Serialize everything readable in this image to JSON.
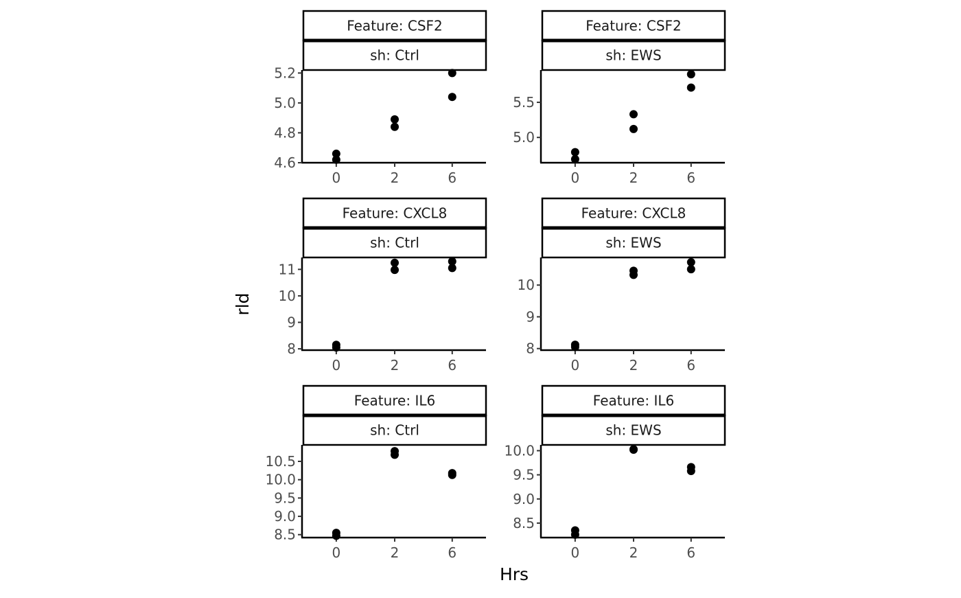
{
  "chart_data": {
    "type": "scatter",
    "xlabel": "Hrs",
    "ylabel": "rld",
    "x_categories": [
      "0",
      "2",
      "6"
    ],
    "grid": false,
    "legend": "none",
    "point_color": "#000000",
    "panels": [
      {
        "feature_label": "Feature: CSF2",
        "sh_label": "sh: Ctrl",
        "ylim": [
          4.6,
          5.22
        ],
        "yticks": [
          4.6,
          4.8,
          5.0,
          5.2
        ],
        "ytick_labels": [
          "4.6",
          "4.8",
          "5.0",
          "5.2"
        ],
        "points": [
          {
            "x": "0",
            "y": 4.66
          },
          {
            "x": "0",
            "y": 4.62
          },
          {
            "x": "2",
            "y": 4.89
          },
          {
            "x": "2",
            "y": 4.84
          },
          {
            "x": "6",
            "y": 5.2
          },
          {
            "x": "6",
            "y": 5.04
          }
        ]
      },
      {
        "feature_label": "Feature: CSF2",
        "sh_label": "sh: EWS",
        "ylim": [
          4.64,
          5.96
        ],
        "yticks": [
          5.0,
          5.5
        ],
        "ytick_labels": [
          "5.0",
          "5.5"
        ],
        "points": [
          {
            "x": "0",
            "y": 4.79
          },
          {
            "x": "0",
            "y": 4.69
          },
          {
            "x": "2",
            "y": 5.33
          },
          {
            "x": "2",
            "y": 5.12
          },
          {
            "x": "6",
            "y": 5.9
          },
          {
            "x": "6",
            "y": 5.71
          }
        ]
      },
      {
        "feature_label": "Feature: CXCL8",
        "sh_label": "sh: Ctrl",
        "ylim": [
          7.95,
          11.45
        ],
        "yticks": [
          8,
          9,
          10,
          11
        ],
        "ytick_labels": [
          "8",
          "9",
          "10",
          "11"
        ],
        "points": [
          {
            "x": "0",
            "y": 8.15
          },
          {
            "x": "0",
            "y": 8.05
          },
          {
            "x": "2",
            "y": 11.25
          },
          {
            "x": "2",
            "y": 10.98
          },
          {
            "x": "6",
            "y": 11.3
          },
          {
            "x": "6",
            "y": 11.05
          }
        ]
      },
      {
        "feature_label": "Feature: CXCL8",
        "sh_label": "sh: EWS",
        "ylim": [
          7.95,
          10.87
        ],
        "yticks": [
          8,
          9,
          10
        ],
        "ytick_labels": [
          "8",
          "9",
          "10"
        ],
        "points": [
          {
            "x": "0",
            "y": 8.12
          },
          {
            "x": "0",
            "y": 8.05
          },
          {
            "x": "2",
            "y": 10.45
          },
          {
            "x": "2",
            "y": 10.32
          },
          {
            "x": "6",
            "y": 10.72
          },
          {
            "x": "6",
            "y": 10.5
          }
        ]
      },
      {
        "feature_label": "Feature: IL6",
        "sh_label": "sh: Ctrl",
        "ylim": [
          8.42,
          10.95
        ],
        "yticks": [
          8.5,
          9.0,
          9.5,
          10.0,
          10.5
        ],
        "ytick_labels": [
          "8.5",
          "9.0",
          "9.5",
          "10.0",
          "10.5"
        ],
        "points": [
          {
            "x": "0",
            "y": 8.55
          },
          {
            "x": "0",
            "y": 8.47
          },
          {
            "x": "2",
            "y": 10.78
          },
          {
            "x": "2",
            "y": 10.68
          },
          {
            "x": "6",
            "y": 10.18
          },
          {
            "x": "6",
            "y": 10.13
          }
        ]
      },
      {
        "feature_label": "Feature: IL6",
        "sh_label": "sh: EWS",
        "ylim": [
          8.2,
          10.12
        ],
        "yticks": [
          8.5,
          9.0,
          9.5,
          10.0
        ],
        "ytick_labels": [
          "8.5",
          "9.0",
          "9.5",
          "10.0"
        ],
        "points": [
          {
            "x": "0",
            "y": 8.35
          },
          {
            "x": "0",
            "y": 8.26
          },
          {
            "x": "2",
            "y": 10.03
          },
          {
            "x": "2",
            "y": 10.02
          },
          {
            "x": "6",
            "y": 9.66
          },
          {
            "x": "6",
            "y": 9.58
          }
        ]
      }
    ]
  }
}
